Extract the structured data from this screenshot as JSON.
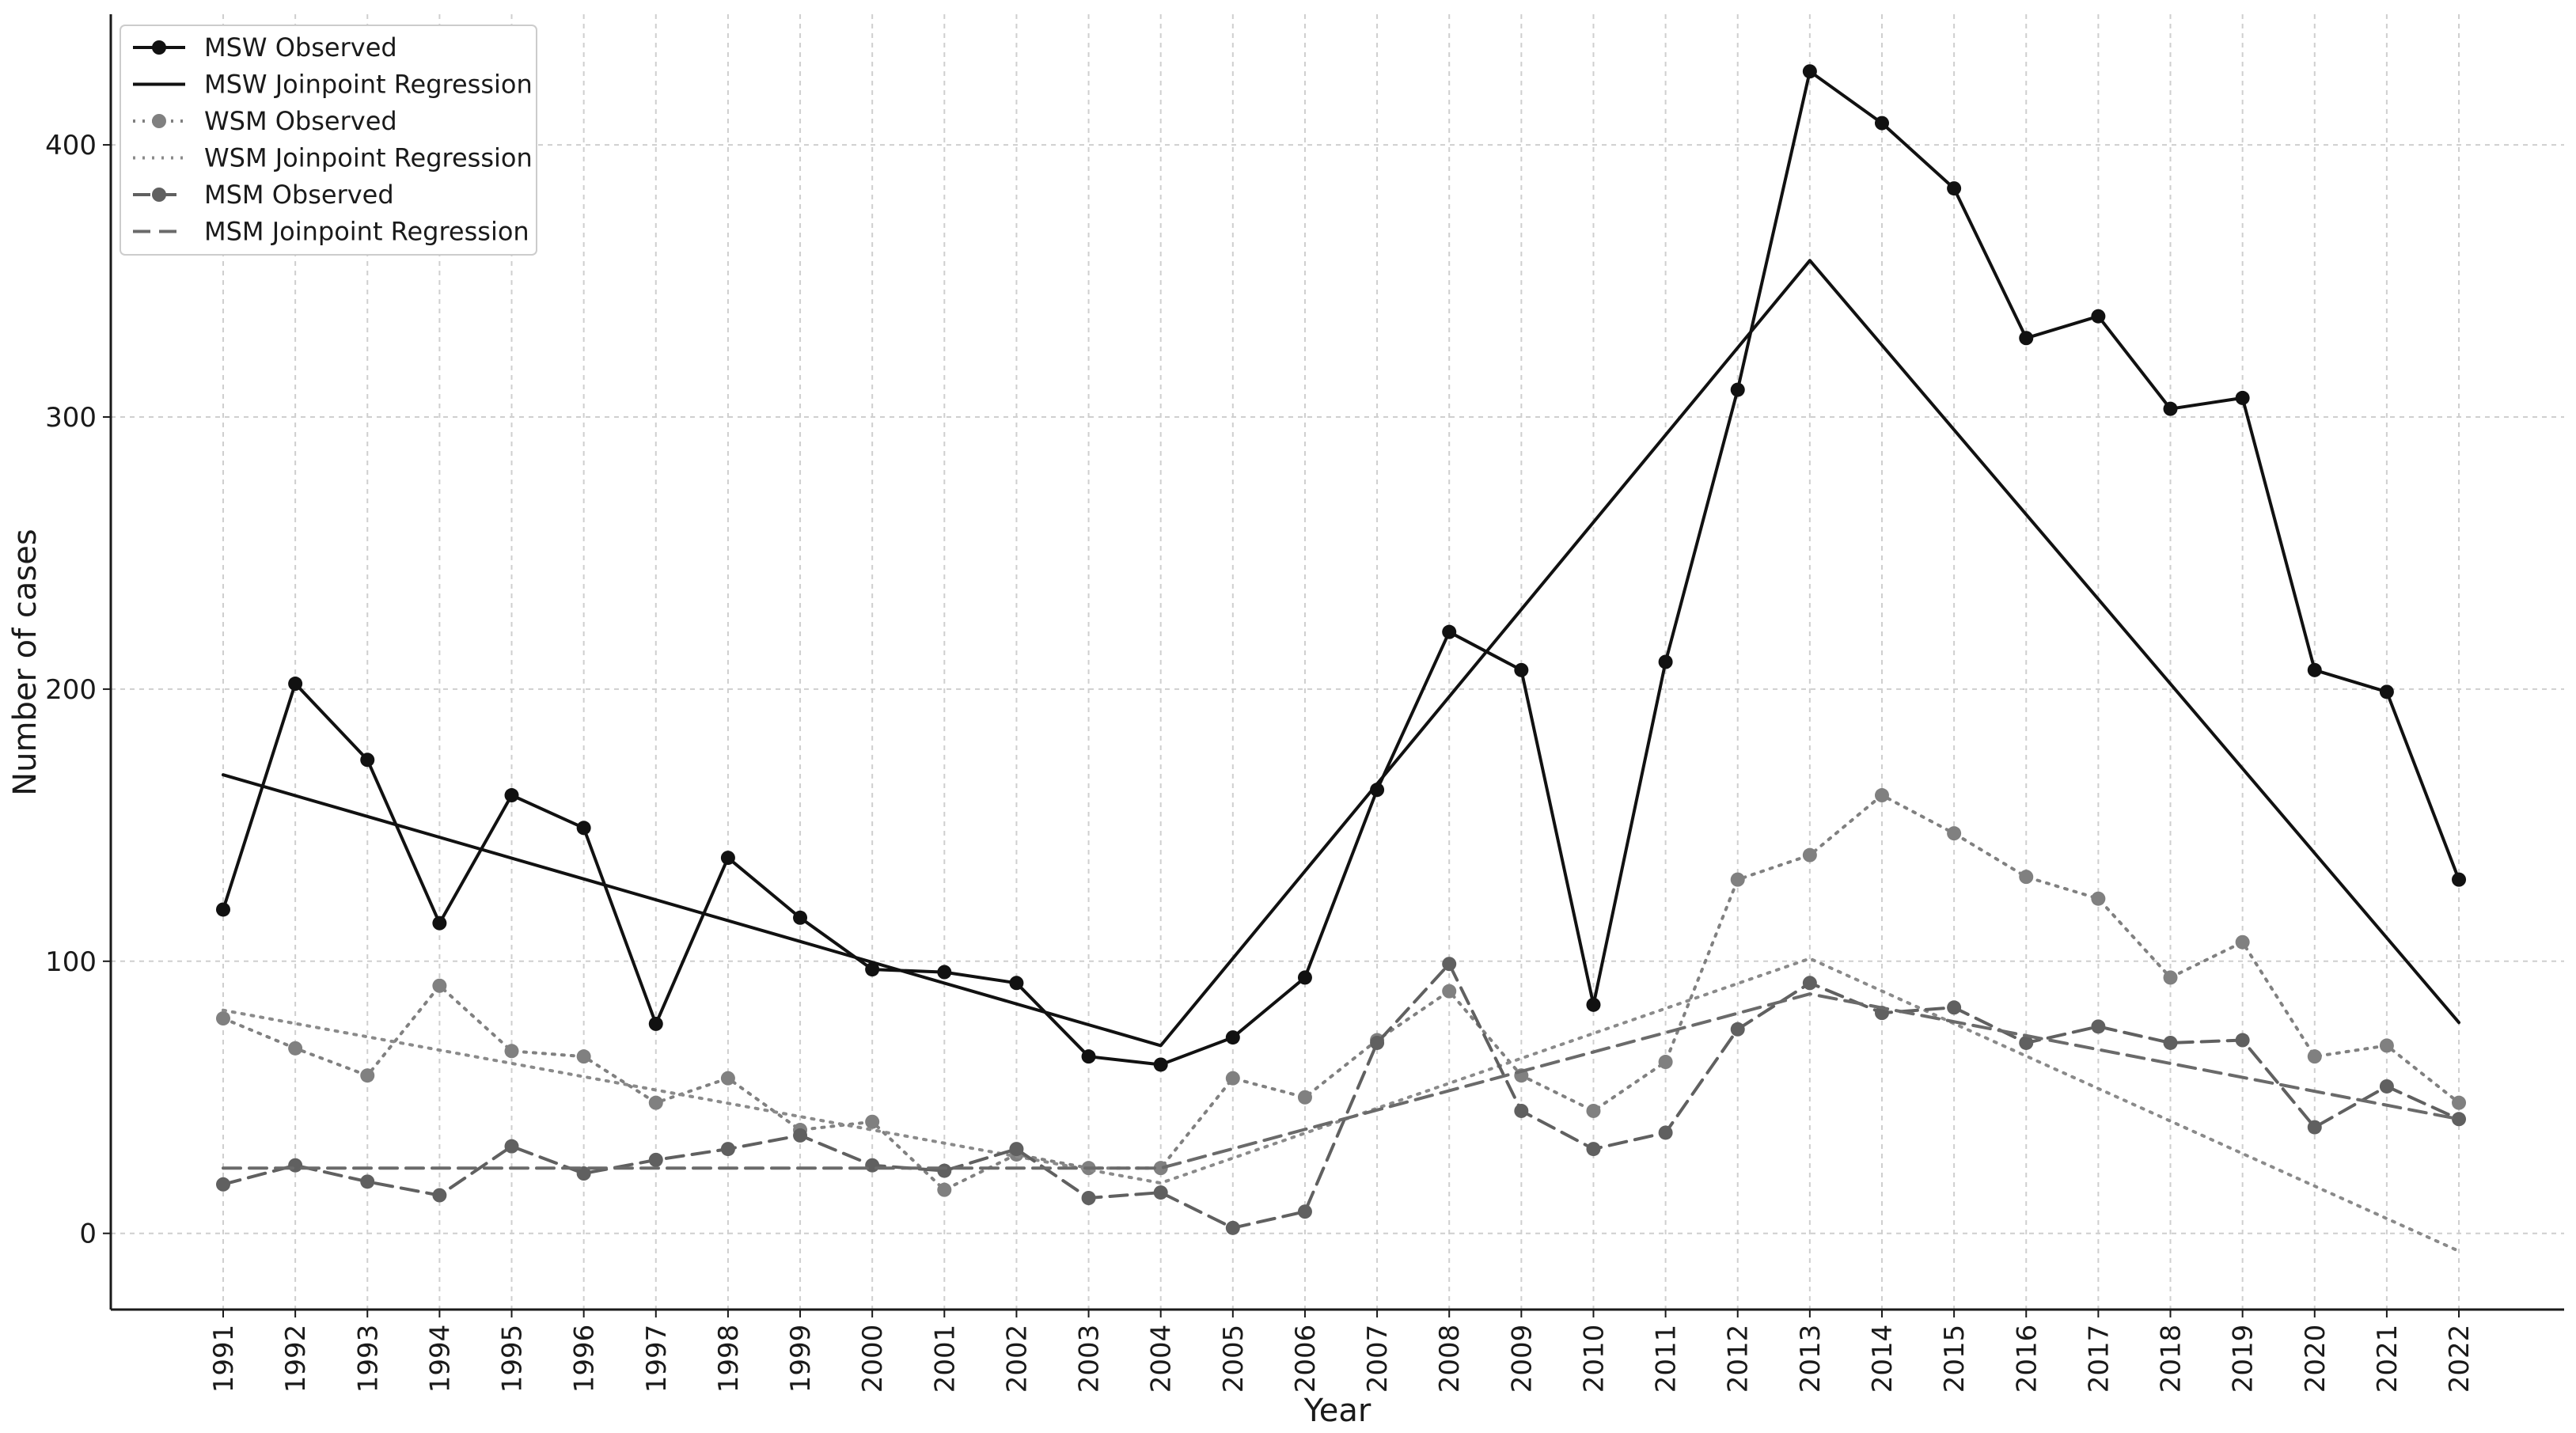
{
  "chart_data": {
    "type": "line",
    "title": "",
    "xlabel": "Year",
    "ylabel": "Number of cases",
    "x": [
      "1991",
      "1992",
      "1993",
      "1994",
      "1995",
      "1996",
      "1997",
      "1998",
      "1999",
      "2000",
      "2001",
      "2002",
      "2003",
      "2004",
      "2005",
      "2006",
      "2007",
      "2008",
      "2009",
      "2010",
      "2011",
      "2012",
      "2013",
      "2014",
      "2015",
      "2016",
      "2017",
      "2018",
      "2019",
      "2020",
      "2021",
      "2022"
    ],
    "ylim": [
      -28,
      448
    ],
    "yticks": [
      0,
      100,
      200,
      300,
      400
    ],
    "grid": true,
    "legend_position": "top-left",
    "series": [
      {
        "name": "MSW Observed",
        "kind": "observed",
        "color": "#111111",
        "dash": "solid",
        "values": [
          119,
          202,
          174,
          114,
          161,
          149,
          77,
          138,
          116,
          97,
          96,
          92,
          65,
          62,
          72,
          94,
          163,
          221,
          207,
          84,
          210,
          310,
          427,
          408,
          384,
          329,
          337,
          303,
          307,
          207,
          199,
          130
        ]
      },
      {
        "name": "MSW Joinpoint Regression",
        "kind": "regression",
        "color": "#111111",
        "dash": "solid",
        "points": [
          [
            "1991",
            168.5
          ],
          [
            "2004",
            69
          ],
          [
            "2013",
            357.5
          ],
          [
            "2022",
            77.5
          ]
        ]
      },
      {
        "name": "WSM Observed",
        "kind": "observed",
        "color": "#808080",
        "dash": "dotted",
        "values": [
          79,
          68,
          58,
          91,
          67,
          65,
          48,
          57,
          38,
          41,
          16,
          29,
          24,
          24,
          57,
          50,
          71,
          89,
          58,
          45,
          63,
          130,
          139,
          161,
          147,
          131,
          123,
          94,
          107,
          65,
          69,
          48
        ]
      },
      {
        "name": "WSM Joinpoint Regression",
        "kind": "regression",
        "color": "#8a8a8a",
        "dash": "dotted",
        "points": [
          [
            "1991",
            82
          ],
          [
            "2004",
            18.5
          ],
          [
            "2013",
            101
          ],
          [
            "2022",
            -6.5
          ]
        ]
      },
      {
        "name": "MSM Observed",
        "kind": "observed",
        "color": "#606060",
        "dash": "dashed",
        "values": [
          18,
          25,
          19,
          14,
          32,
          22,
          27,
          31,
          36,
          25,
          23,
          31,
          13,
          15,
          2,
          8,
          70,
          99,
          45,
          31,
          37,
          75,
          92,
          81,
          83,
          70,
          76,
          70,
          71,
          39,
          54,
          42
        ]
      },
      {
        "name": "MSM Joinpoint Regression",
        "kind": "regression",
        "color": "#6a6a6a",
        "dash": "dashed",
        "points": [
          [
            "1991",
            24
          ],
          [
            "2004",
            24
          ],
          [
            "2013",
            88
          ],
          [
            "2022",
            42
          ]
        ]
      }
    ]
  }
}
